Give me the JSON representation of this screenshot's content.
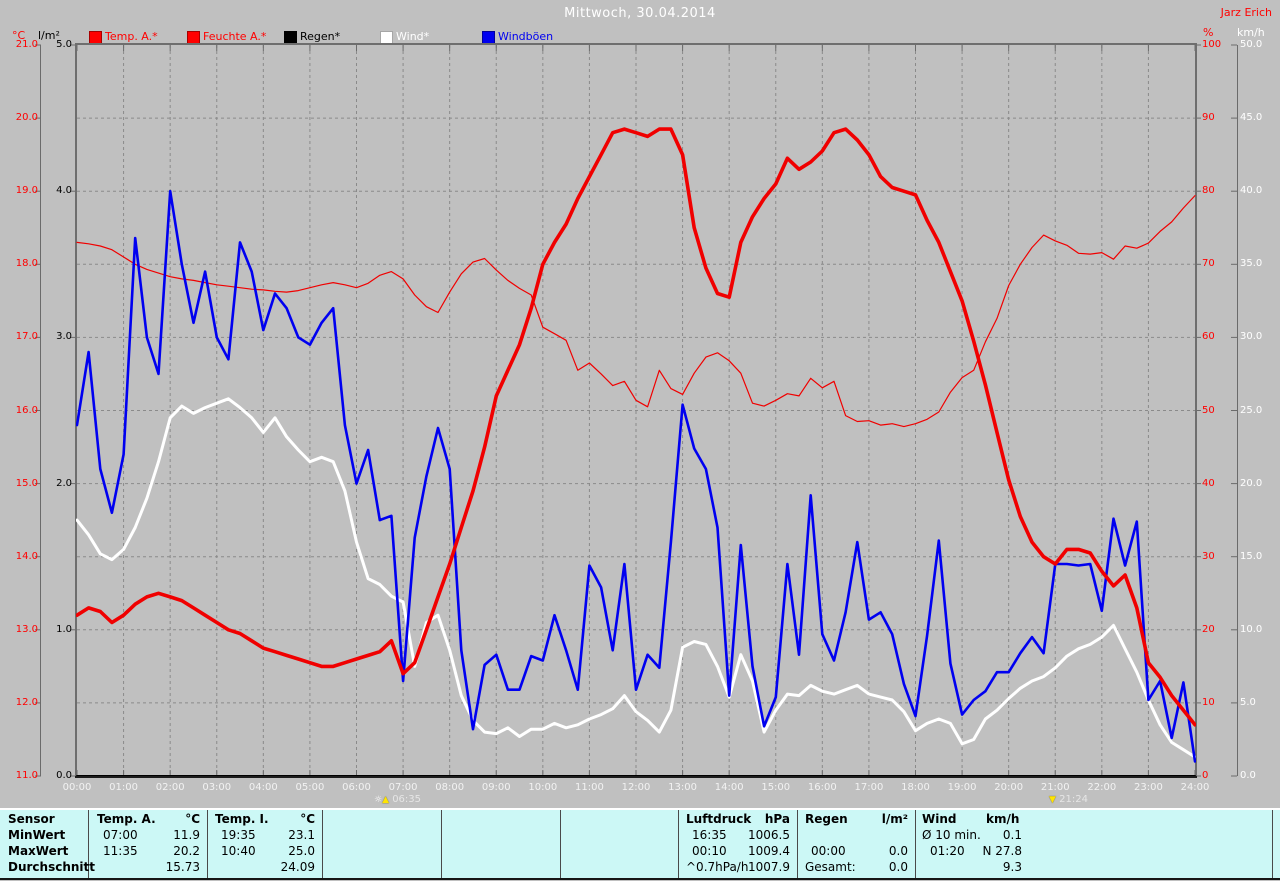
{
  "header": {
    "title": "Mittwoch, 30.04.2014",
    "watermark": "Jarz Erich"
  },
  "legend": {
    "unit_left_temp": "°C",
    "unit_left_rain": "l/m²",
    "unit_right_humidity": "%",
    "unit_right_wind": "km/h",
    "items": [
      {
        "label": "Temp. A.*",
        "swatch": "#ff0000",
        "text_color": "#ff0000"
      },
      {
        "label": "Feuchte A.*",
        "swatch": "#ff0000",
        "text_color": "#ff0000"
      },
      {
        "label": "Regen*",
        "swatch": "#000000",
        "text_color": "#000000"
      },
      {
        "label": "Wind*",
        "swatch": "#ffffff",
        "text_color": "#ffffff"
      },
      {
        "label": "Windböen",
        "swatch": "#0000f0",
        "text_color": "#0000f0"
      }
    ]
  },
  "markers": {
    "sunrise_time": "06:35",
    "sunset_time": "21:24"
  },
  "axis_labels": {
    "temp_c": [
      "21.0",
      "20.0",
      "19.0",
      "18.0",
      "17.0",
      "16.0",
      "15.0",
      "14.0",
      "13.0",
      "12.0",
      "11.0"
    ],
    "rain_lm2": [
      "5.0",
      "4.0",
      "3.0",
      "2.0",
      "1.0",
      "0.0"
    ],
    "humidity_pct": [
      "100",
      "90",
      "80",
      "70",
      "60",
      "50",
      "40",
      "30",
      "20",
      "10",
      "0"
    ],
    "wind_kmh": [
      "50.0",
      "45.0",
      "40.0",
      "35.0",
      "30.0",
      "25.0",
      "20.0",
      "15.0",
      "10.0",
      "5.0",
      "0.0"
    ],
    "hours": [
      "00:00",
      "01:00",
      "02:00",
      "03:00",
      "04:00",
      "05:00",
      "06:00",
      "07:00",
      "08:00",
      "09:00",
      "10:00",
      "11:00",
      "12:00",
      "13:00",
      "14:00",
      "15:00",
      "16:00",
      "17:00",
      "18:00",
      "19:00",
      "20:00",
      "21:00",
      "22:00",
      "23:00",
      "24:00"
    ]
  },
  "chart_data": {
    "type": "line",
    "title": "Mittwoch, 30.04.2014",
    "x_unit": "hours",
    "x_range": [
      0,
      24
    ],
    "x_step": 0.25,
    "grid": true,
    "axes": {
      "left_temp_c": [
        11,
        21
      ],
      "left_rain_lm2": [
        0,
        5
      ],
      "right_humidity_pct": [
        0,
        100
      ],
      "right_wind_kmh": [
        0,
        50
      ]
    },
    "series": [
      {
        "name": "Regen",
        "unit": "l/m²",
        "color": "#000000",
        "width": 2,
        "axis_range": [
          0,
          5
        ],
        "x": [
          0,
          24
        ],
        "values": [
          0.0,
          0.0
        ]
      },
      {
        "name": "Feuchte A.",
        "unit": "%",
        "color": "#f00000",
        "width": 1.2,
        "axis_range": [
          0,
          100
        ],
        "values": [
          73,
          72.8,
          72.5,
          72,
          71,
          70,
          69.3,
          68.8,
          68.3,
          68,
          67.8,
          67.5,
          67.2,
          67,
          66.8,
          66.6,
          66.5,
          66.3,
          66.2,
          66.4,
          66.8,
          67.2,
          67.5,
          67.2,
          66.8,
          67.4,
          68.5,
          69,
          68,
          65.8,
          64.2,
          63.4,
          66.2,
          68.7,
          70.3,
          70.8,
          69.2,
          67.8,
          66.7,
          65.8,
          61.4,
          60.5,
          59.6,
          55.5,
          56.5,
          55,
          53.4,
          54,
          51.4,
          50.5,
          55.5,
          53,
          52.2,
          55.1,
          57.3,
          57.9,
          56.8,
          55.1,
          51,
          50.6,
          51.4,
          52.3,
          52,
          54.4,
          53.1,
          54,
          49.3,
          48.5,
          48.6,
          48,
          48.2,
          47.8,
          48.2,
          48.8,
          49.8,
          52.5,
          54.5,
          55.5,
          59.4,
          62.6,
          67.1,
          70,
          72.3,
          74,
          73.2,
          72.6,
          71.5,
          71.4,
          71.6,
          70.7,
          72.5,
          72.2,
          72.9,
          74.5,
          75.8,
          77.7,
          79.4
        ]
      },
      {
        "name": "Wind",
        "unit": "km/h",
        "color": "#ffffff",
        "width": 3,
        "axis_range": [
          0,
          50
        ],
        "values": [
          17.5,
          16.5,
          15.2,
          14.8,
          15.5,
          17,
          19,
          21.5,
          24.5,
          25.3,
          24.8,
          25.2,
          25.5,
          25.8,
          25.2,
          24.5,
          23.5,
          24.5,
          23.2,
          22.3,
          21.5,
          21.8,
          21.5,
          19.5,
          16,
          13.5,
          13.1,
          12.3,
          11.9,
          7.5,
          10.5,
          11,
          8.6,
          5.5,
          3.8,
          3.0,
          2.9,
          3.3,
          2.7,
          3.2,
          3.2,
          3.6,
          3.3,
          3.5,
          3.9,
          4.2,
          4.6,
          5.5,
          4.4,
          3.8,
          3.0,
          4.5,
          8.8,
          9.2,
          9.0,
          7.5,
          5.4,
          8.3,
          6.5,
          3.0,
          4.5,
          5.6,
          5.5,
          6.2,
          5.8,
          5.6,
          5.9,
          6.2,
          5.6,
          5.4,
          5.2,
          4.4,
          3.1,
          3.6,
          3.9,
          3.6,
          2.2,
          2.5,
          3.9,
          4.5,
          5.3,
          6.0,
          6.5,
          6.8,
          7.4,
          8.2,
          8.7,
          9.0,
          9.5,
          10.3,
          8.7,
          7.1,
          5.2,
          3.5,
          2.3,
          1.8,
          1.3
        ]
      },
      {
        "name": "Windböen",
        "unit": "km/h",
        "color": "#0000f0",
        "width": 2.6,
        "axis_range": [
          0,
          50
        ],
        "values": [
          24,
          29,
          21,
          18,
          22,
          36.8,
          30,
          27.5,
          40,
          35,
          31,
          34.5,
          30,
          28.5,
          36.5,
          34.5,
          30.5,
          33,
          32,
          30,
          29.5,
          31,
          32,
          24,
          20,
          22.3,
          17.5,
          17.8,
          6.5,
          16.3,
          20.5,
          23.8,
          21,
          8.6,
          3.2,
          7.6,
          8.3,
          5.9,
          5.9,
          8.2,
          7.9,
          11,
          8.6,
          5.9,
          14.4,
          12.9,
          8.6,
          14.5,
          5.9,
          8.3,
          7.4,
          16,
          25.4,
          22.4,
          21,
          17,
          5.5,
          15.8,
          7.5,
          3.4,
          5.4,
          14.5,
          8.3,
          19.2,
          9.7,
          7.9,
          11.2,
          16,
          10.7,
          11.2,
          9.7,
          6.3,
          4.1,
          9.6,
          16.1,
          7.7,
          4.2,
          5.2,
          5.8,
          7.1,
          7.1,
          8.4,
          9.5,
          8.4,
          14.5,
          14.5,
          14.4,
          14.5,
          11.3,
          17.6,
          14.4,
          17.4,
          5.2,
          6.5,
          2.6,
          6.4,
          1.0
        ]
      },
      {
        "name": "Temp. A.",
        "unit": "°C",
        "color": "#f00000",
        "width": 3.6,
        "axis_range": [
          11,
          21
        ],
        "values": [
          13.2,
          13.3,
          13.25,
          13.1,
          13.2,
          13.35,
          13.45,
          13.5,
          13.45,
          13.4,
          13.3,
          13.2,
          13.1,
          13.0,
          12.95,
          12.85,
          12.75,
          12.7,
          12.65,
          12.6,
          12.55,
          12.5,
          12.5,
          12.55,
          12.6,
          12.65,
          12.7,
          12.85,
          12.4,
          12.55,
          13.0,
          13.45,
          13.9,
          14.4,
          14.9,
          15.5,
          16.2,
          16.55,
          16.9,
          17.4,
          18.0,
          18.3,
          18.55,
          18.9,
          19.2,
          19.5,
          19.8,
          19.85,
          19.8,
          19.75,
          19.85,
          19.85,
          19.5,
          18.5,
          17.95,
          17.6,
          17.55,
          18.3,
          18.65,
          18.9,
          19.1,
          19.45,
          19.3,
          19.4,
          19.55,
          19.8,
          19.85,
          19.7,
          19.5,
          19.2,
          19.05,
          19.0,
          18.95,
          18.6,
          18.3,
          17.9,
          17.5,
          16.95,
          16.35,
          15.7,
          15.05,
          14.55,
          14.2,
          14.0,
          13.9,
          14.1,
          14.1,
          14.05,
          13.8,
          13.6,
          13.75,
          13.3,
          12.55,
          12.35,
          12.1,
          11.9,
          11.7
        ]
      }
    ]
  },
  "table": {
    "row_labels": [
      "Sensor",
      "MinWert",
      "MaxWert",
      "Durchschnitt"
    ],
    "columns": [
      {
        "name": "Temp. A.",
        "unit": "°C",
        "min_time": "07:00",
        "min_value": "11.9",
        "max_time": "11:35",
        "max_value": "20.2",
        "avg": "15.73"
      },
      {
        "name": "Temp. I.",
        "unit": "°C",
        "min_time": "19:35",
        "min_value": "23.1",
        "max_time": "10:40",
        "max_value": "25.0",
        "avg": "24.09"
      },
      {
        "name": "Luftdruck",
        "unit": "hPa",
        "min_time": "16:35",
        "min_value": "1006.5",
        "max_time": "00:10",
        "max_value": "1009.4",
        "avg_label": "^0.7hPa/h",
        "avg": "1007.9"
      },
      {
        "name": "Regen",
        "unit": "l/m²",
        "max_time": "00:00",
        "max_value": "0.0",
        "avg_label": "Gesamt:",
        "avg": "0.0"
      },
      {
        "name": "Wind",
        "unit": "km/h",
        "min_label": "Ø 10 min.",
        "min_value": "0.1",
        "max_time": "01:20",
        "max_value": "N 27.8",
        "avg": "9.3"
      }
    ]
  }
}
